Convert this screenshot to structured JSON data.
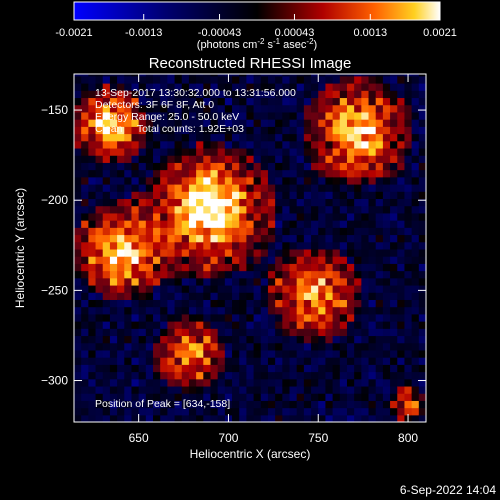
{
  "chart_data": {
    "type": "heatmap",
    "title": "Reconstructed RHESSI Image",
    "xlabel": "Heliocentric X (arcsec)",
    "ylabel": "Heliocentric Y (arcsec)",
    "xlim": [
      614,
      810
    ],
    "ylim": [
      -323,
      -130
    ],
    "xticks": [
      650,
      700,
      750,
      800
    ],
    "yticks": [
      -150,
      -200,
      -250,
      -300
    ],
    "colorbar": {
      "ticks": [
        "-0.0021",
        "-0.0013",
        "-0.00043",
        "0.00043",
        "0.0013",
        "0.0021"
      ],
      "range": [
        -0.0021,
        0.0021
      ],
      "label_main": "(photons cm",
      "label_sup1": "-2",
      "label_mid": " s",
      "label_sup2": "-1",
      "label_end": " asec",
      "label_sup3": "-2",
      "label_close": ")"
    },
    "annotations": [
      "13-Sep-2017 13:30:32.000 to 13:31:56.000",
      "Detectors: 3F 6F 8F, Att 0",
      "Energy Range: 25.0 - 50.0 keV",
      "Clean     Total counts: 1.92E+03"
    ],
    "peak_label": "Position of Peak = [634,-158]",
    "peak": [
      634,
      -158
    ],
    "emission_sources": [
      {
        "x": 690,
        "y": -205,
        "amplitude": 1.0,
        "sigma": 18
      },
      {
        "x": 640,
        "y": -228,
        "amplitude": 0.85,
        "sigma": 14
      },
      {
        "x": 634,
        "y": -158,
        "amplitude": 0.9,
        "sigma": 11
      },
      {
        "x": 772,
        "y": -162,
        "amplitude": 0.8,
        "sigma": 16
      },
      {
        "x": 748,
        "y": -252,
        "amplitude": 0.75,
        "sigma": 14
      },
      {
        "x": 678,
        "y": -285,
        "amplitude": 0.72,
        "sigma": 11
      },
      {
        "x": 800,
        "y": -312,
        "amplitude": 0.5,
        "sigma": 6
      }
    ]
  },
  "timestamp": "6-Sep-2022 14:04"
}
